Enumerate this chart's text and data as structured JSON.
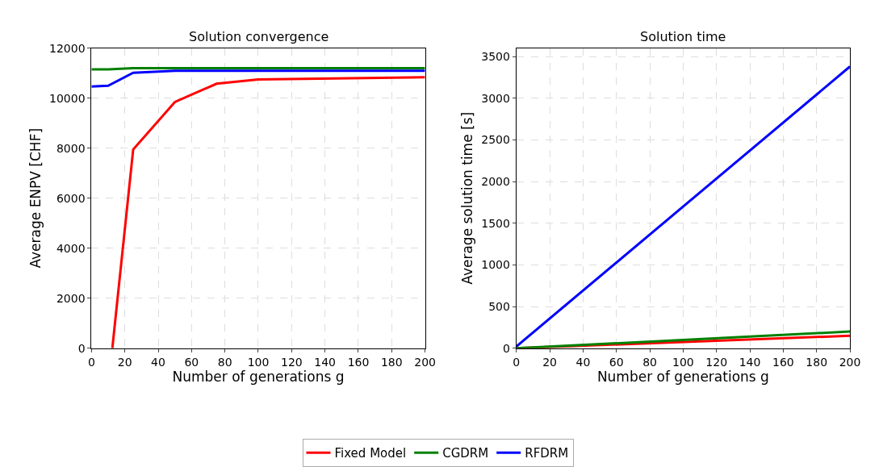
{
  "chart_data": [
    {
      "type": "line",
      "title": "Solution convergence",
      "xlabel": "Number of generations g",
      "ylabel": "Average ENPV [CHF]",
      "xlim": [
        0,
        200
      ],
      "xticks": [
        0,
        20,
        40,
        60,
        80,
        100,
        120,
        140,
        160,
        180,
        200
      ],
      "ylim": [
        0,
        12000
      ],
      "yticks": [
        0,
        2000,
        4000,
        6000,
        8000,
        10000,
        12000
      ],
      "grid": true,
      "legend": "bottom",
      "marker": "none",
      "line_style": "solid",
      "series": [
        {
          "name": "Fixed Model",
          "color": "#ff0000",
          "x": [
            12.5,
            25,
            50,
            75,
            100,
            200
          ],
          "values": [
            0,
            7950,
            9850,
            10580,
            10750,
            10840
          ]
        },
        {
          "name": "CGDRM",
          "color": "#008000",
          "x": [
            0,
            10,
            25,
            50,
            200
          ],
          "values": [
            11150,
            11150,
            11200,
            11200,
            11200
          ]
        },
        {
          "name": "RFDRM",
          "color": "#0000ff",
          "x": [
            0,
            10,
            25,
            50,
            200
          ],
          "values": [
            10470,
            10500,
            11020,
            11100,
            11100
          ]
        }
      ]
    },
    {
      "type": "line",
      "title": "Solution time",
      "xlabel": "Number of generations g",
      "ylabel": "Average solution time [s]",
      "xlim": [
        0,
        200
      ],
      "xticks": [
        0,
        20,
        40,
        60,
        80,
        100,
        120,
        140,
        160,
        180,
        200
      ],
      "ylim": [
        0,
        3600
      ],
      "yticks": [
        0,
        500,
        1000,
        1500,
        2000,
        2500,
        3000,
        3500
      ],
      "grid": true,
      "legend": "bottom",
      "marker": "none",
      "line_style": "solid",
      "series": [
        {
          "name": "Fixed Model",
          "color": "#ff0000",
          "x": [
            0,
            200
          ],
          "values": [
            0,
            150
          ]
        },
        {
          "name": "CGDRM",
          "color": "#008000",
          "x": [
            0,
            200
          ],
          "values": [
            0,
            200
          ]
        },
        {
          "name": "RFDRM",
          "color": "#0000ff",
          "x": [
            0,
            200
          ],
          "values": [
            20,
            3380
          ]
        }
      ]
    }
  ]
}
